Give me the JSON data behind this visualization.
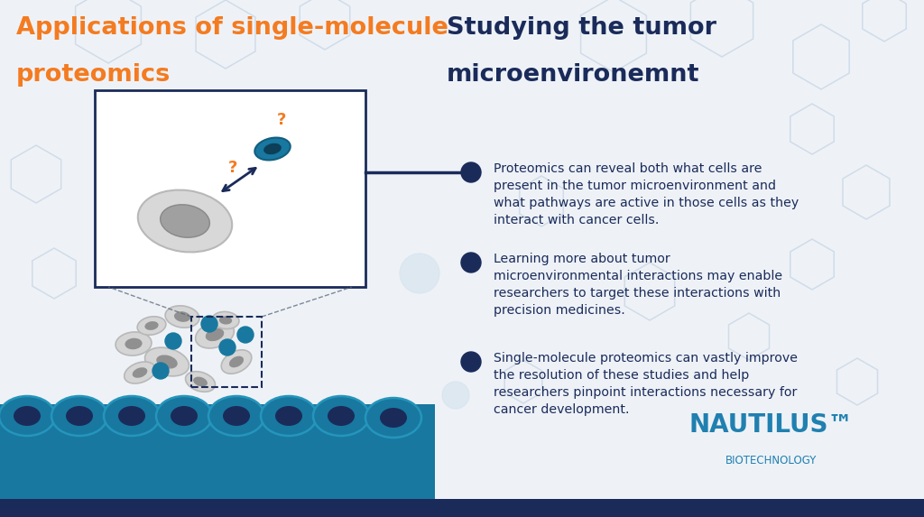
{
  "bg_color": "#eef2f7",
  "left_title_line1": "Applications of single-molecule",
  "left_title_line2": "proteomics",
  "left_title_color": "#f47b20",
  "right_title_line1": "Studying the tumor",
  "right_title_line2": "microenvironemnt",
  "right_title_color": "#1a2b5a",
  "bullet_color": "#1a2b5a",
  "bullet_points": [
    "Proteomics can reveal both what cells are\npresent in the tumor microenvironment and\nwhat pathways are active in those cells as they\ninteract with cancer cells.",
    "Learning more about tumor\nmicroenvironmental interactions may enable\nresearchers to target these interactions with\nprecision medicines.",
    "Single-molecule proteomics can vastly improve\nthe resolution of these studies and help\nresearchers pinpoint interactions necessary for\ncancer development."
  ],
  "text_color": "#1a2b5a",
  "teal_color": "#1878a0",
  "dark_navy": "#1a2b5a",
  "orange_color": "#f47b20",
  "bottom_bar_color": "#1a2b5a",
  "nautilus_color": "#2080b0",
  "hex_color": "#d0dce8",
  "gray_cell": "#d5d5d5",
  "gray_nucleus": "#909090",
  "tissue_color": "#1878a0",
  "tissue_dark": "#1a2b5a"
}
